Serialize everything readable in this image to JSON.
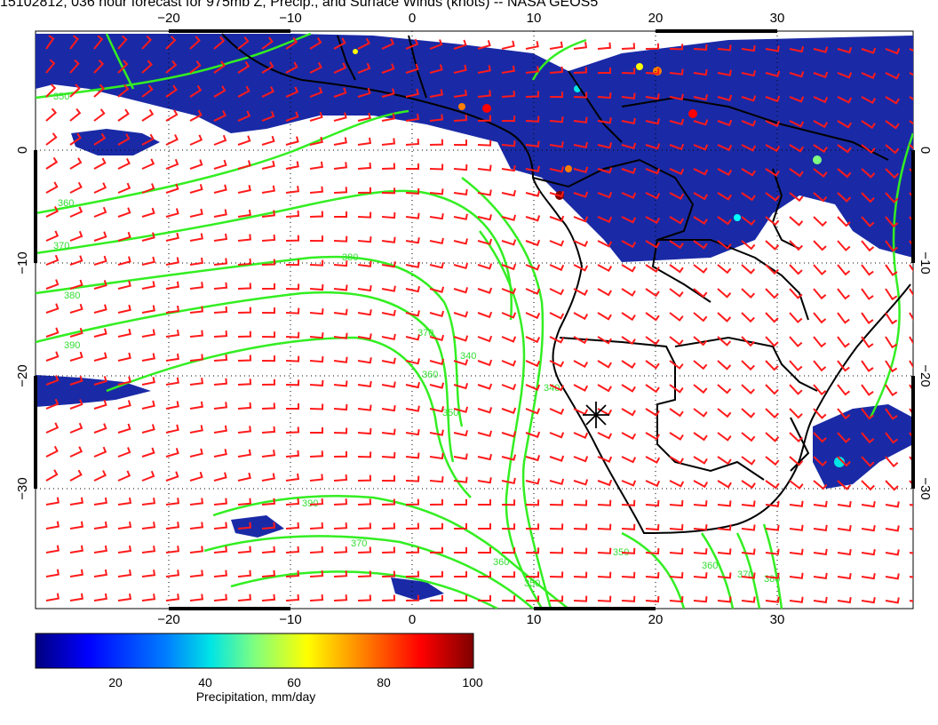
{
  "title": "15102812, 036 hour forecast for 975mb Z, Precip., and Surface Winds (knots) -- NASA GEOS5",
  "map": {
    "lon_labels": [
      "−20",
      "−10",
      "0",
      "10",
      "20",
      "30"
    ],
    "lat_labels": [
      "0",
      "−10",
      "−20",
      "−30"
    ],
    "lon_range": [
      -30,
      41
    ],
    "lat_range": [
      -40,
      10
    ],
    "contour_labels": [
      "350",
      "360",
      "370",
      "380",
      "390",
      "380",
      "370",
      "360",
      "350",
      "340",
      "390",
      "370",
      "360",
      "350",
      "340",
      "350",
      "360",
      "370",
      "380"
    ],
    "marker_icon": "asterisk-location-marker-icon"
  },
  "colorbar": {
    "ticks": [
      "20",
      "40",
      "60",
      "80",
      "100"
    ],
    "label": "Precipitation, mm/day",
    "colors": [
      "#00007f",
      "#0000ff",
      "#007fff",
      "#00ffff",
      "#7fff7f",
      "#ffff00",
      "#ff7f00",
      "#ff0000",
      "#7f0000"
    ]
  },
  "colors": {
    "contour": "#33ee22",
    "wind_barb": "#ff1a1a",
    "precip_fill": "#1a2aa6",
    "coast": "#000000",
    "grid": "#000000"
  }
}
